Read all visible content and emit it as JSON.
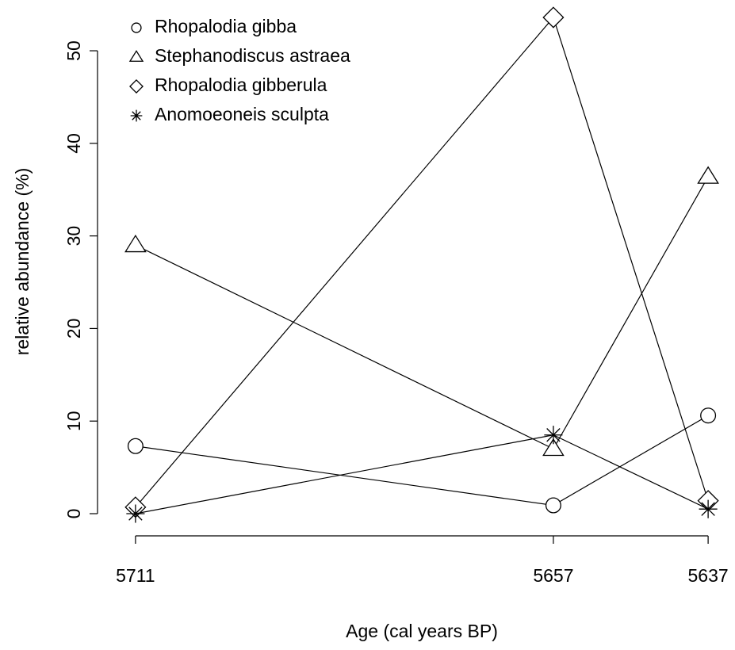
{
  "chart_data": {
    "type": "line",
    "x_label": "Age (cal years BP)",
    "y_label": "relative abundance (%)",
    "x": [
      5711,
      5657,
      5637
    ],
    "xlim": [
      5713.96,
      5634.04
    ],
    "xticks": [
      5711,
      5657,
      5637
    ],
    "ylim": [
      -2.14,
      55.74
    ],
    "yticks": [
      0,
      10,
      20,
      30,
      40,
      50
    ],
    "legend_position": "topleft",
    "series": [
      {
        "name": "Rhopalodia gibba",
        "color": "#000000",
        "marker": "circle",
        "values": [
          7.3,
          0.9,
          10.6
        ]
      },
      {
        "name": "Stephanodiscus astraea",
        "color": "#000000",
        "marker": "triangle",
        "values": [
          29.0,
          7.0,
          36.4
        ]
      },
      {
        "name": "Rhopalodia gibberula",
        "color": "#000000",
        "marker": "diamond",
        "values": [
          0.7,
          53.6,
          1.4
        ]
      },
      {
        "name": "Anomoeoneis sculpta",
        "color": "#000000",
        "marker": "asterisk",
        "values": [
          0,
          8.5,
          0.5
        ]
      }
    ]
  }
}
